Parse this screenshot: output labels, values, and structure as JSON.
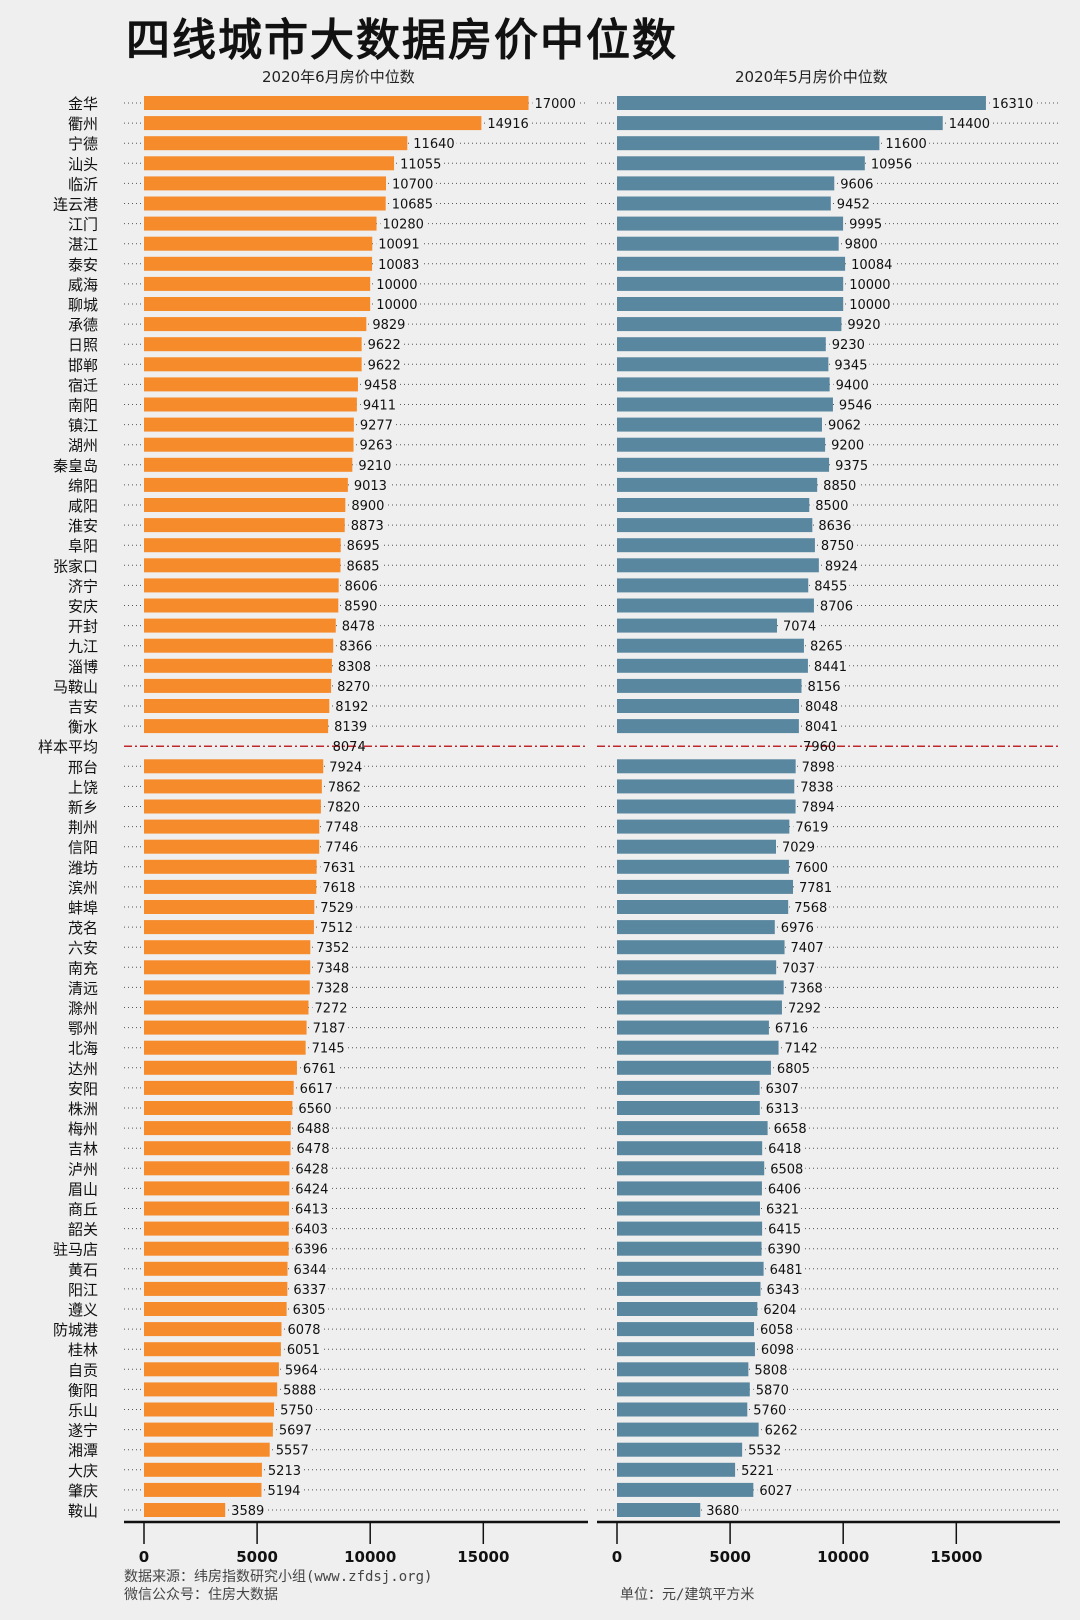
{
  "title": "四线城市大数据房价中位数",
  "chart_data": {
    "type": "bar",
    "orientation": "horizontal",
    "title": "四线城市大数据房价中位数",
    "categories": [
      "金华",
      "衢州",
      "宁德",
      "汕头",
      "临沂",
      "连云港",
      "江门",
      "湛江",
      "泰安",
      "威海",
      "聊城",
      "承德",
      "日照",
      "邯郸",
      "宿迁",
      "南阳",
      "镇江",
      "湖州",
      "秦皇岛",
      "绵阳",
      "咸阳",
      "淮安",
      "阜阳",
      "张家口",
      "济宁",
      "安庆",
      "开封",
      "九江",
      "淄博",
      "马鞍山",
      "吉安",
      "衡水",
      "样本平均",
      "邢台",
      "上饶",
      "新乡",
      "荆州",
      "信阳",
      "潍坊",
      "滨州",
      "蚌埠",
      "茂名",
      "六安",
      "南充",
      "清远",
      "滁州",
      "鄂州",
      "北海",
      "达州",
      "安阳",
      "株洲",
      "梅州",
      "吉林",
      "泸州",
      "眉山",
      "商丘",
      "韶关",
      "驻马店",
      "黄石",
      "阳江",
      "遵义",
      "防城港",
      "桂林",
      "自贡",
      "衡阳",
      "乐山",
      "遂宁",
      "湘潭",
      "大庆",
      "肇庆",
      "鞍山"
    ],
    "reference_category": "样本平均",
    "series": [
      {
        "name": "2020年6月房价中位数",
        "color": "#f68b2c",
        "values": [
          17000,
          14916,
          11640,
          11055,
          10700,
          10685,
          10280,
          10091,
          10083,
          10000,
          10000,
          9829,
          9622,
          9622,
          9458,
          9411,
          9277,
          9263,
          9210,
          9013,
          8900,
          8873,
          8695,
          8685,
          8606,
          8590,
          8478,
          8366,
          8308,
          8270,
          8192,
          8139,
          8074,
          7924,
          7862,
          7820,
          7748,
          7746,
          7631,
          7618,
          7529,
          7512,
          7352,
          7348,
          7328,
          7272,
          7187,
          7145,
          6761,
          6617,
          6560,
          6488,
          6478,
          6428,
          6424,
          6413,
          6403,
          6396,
          6344,
          6337,
          6305,
          6078,
          6051,
          5964,
          5888,
          5750,
          5697,
          5557,
          5213,
          5194,
          3589
        ]
      },
      {
        "name": "2020年5月房价中位数",
        "color": "#5a87a0",
        "values": [
          16310,
          14400,
          11600,
          10956,
          9606,
          9452,
          9995,
          9800,
          10084,
          10000,
          10000,
          9920,
          9230,
          9345,
          9400,
          9546,
          9062,
          9200,
          9375,
          8850,
          8500,
          8636,
          8750,
          8924,
          8455,
          8706,
          7074,
          8265,
          8441,
          8156,
          8048,
          8041,
          7960,
          7898,
          7838,
          7894,
          7619,
          7029,
          7600,
          7781,
          7568,
          6976,
          7407,
          7037,
          7368,
          7292,
          6716,
          7142,
          6805,
          6307,
          6313,
          6658,
          6418,
          6508,
          6406,
          6321,
          6415,
          6390,
          6481,
          6343,
          6204,
          6058,
          6098,
          5808,
          5870,
          5760,
          6262,
          5532,
          5221,
          6027,
          3680
        ]
      }
    ],
    "xticks": [
      "0",
      "5000",
      "10000",
      "15000"
    ],
    "xlim": [
      0,
      20000
    ],
    "grid": "dotted row guides",
    "average_line_color": "#c0282d"
  },
  "footer": {
    "source": "数据来源：纬房指数研究小组(www.zfdsj.org)",
    "wechat": "微信公众号：住房大数据",
    "unit": "单位：元/建筑平方米"
  }
}
